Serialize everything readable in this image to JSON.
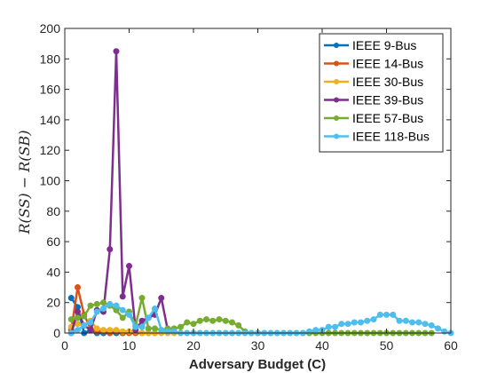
{
  "chart_data": {
    "type": "line",
    "xlabel": "Adversary Budget (C)",
    "ylabel": "R(S_S) − R(S_B)",
    "ylabel_text": "R(SS) − R(SB)",
    "xlim": [
      0,
      60
    ],
    "ylim": [
      0,
      200
    ],
    "xticks": [
      0,
      10,
      20,
      30,
      40,
      50,
      60
    ],
    "yticks": [
      0,
      20,
      40,
      60,
      80,
      100,
      120,
      140,
      160,
      180,
      200
    ],
    "grid": false,
    "legend_position": "top-right",
    "series": [
      {
        "name": "IEEE 9-Bus",
        "color": "#0072BD",
        "x": [
          1,
          2,
          3,
          4,
          5,
          6,
          7,
          8,
          9
        ],
        "y": [
          23,
          17,
          0,
          2,
          0,
          0,
          0,
          0,
          0
        ]
      },
      {
        "name": "IEEE 14-Bus",
        "color": "#D95319",
        "x": [
          1,
          2,
          3,
          4,
          5,
          6,
          7,
          8,
          9,
          10,
          11,
          12,
          13,
          14
        ],
        "y": [
          2,
          30,
          12,
          3,
          1,
          1,
          0,
          1,
          0,
          0,
          0,
          0,
          0,
          0
        ]
      },
      {
        "name": "IEEE 30-Bus",
        "color": "#EDB120",
        "x": [
          1,
          2,
          3,
          4,
          5,
          6,
          7,
          8,
          9,
          10,
          11,
          12,
          13,
          14,
          15,
          16,
          17,
          18,
          19,
          20,
          21,
          22,
          23,
          24,
          25,
          26,
          27,
          28,
          29,
          30
        ],
        "y": [
          4,
          6,
          5,
          8,
          3,
          2,
          2,
          2,
          1,
          1,
          1,
          0,
          0,
          0,
          0,
          0,
          0,
          0,
          0,
          0,
          0,
          0,
          0,
          0,
          0,
          0,
          0,
          0,
          0,
          0
        ]
      },
      {
        "name": "IEEE 39-Bus",
        "color": "#7E2F8E",
        "x": [
          1,
          2,
          3,
          4,
          5,
          6,
          7,
          8,
          9,
          10,
          11,
          12,
          13,
          14,
          15,
          16
        ],
        "y": [
          0,
          14,
          5,
          2,
          15,
          14,
          55,
          185,
          24,
          44,
          2,
          8,
          10,
          12,
          23,
          2
        ]
      },
      {
        "name": "IEEE 57-Bus",
        "color": "#77AC30",
        "x": [
          1,
          2,
          3,
          4,
          5,
          6,
          7,
          8,
          9,
          10,
          11,
          12,
          13,
          14,
          15,
          16,
          17,
          18,
          19,
          20,
          21,
          22,
          23,
          24,
          25,
          26,
          27,
          28,
          29,
          30,
          31,
          32,
          33,
          34,
          35,
          36,
          37,
          38,
          39,
          40,
          41,
          42,
          43,
          44,
          45,
          46,
          47,
          48,
          49,
          50,
          51,
          52,
          53,
          54,
          55,
          56,
          57
        ],
        "y": [
          9,
          10,
          11,
          18,
          19,
          20,
          18,
          15,
          10,
          14,
          5,
          23,
          3,
          3,
          2,
          3,
          3,
          4,
          7,
          6,
          8,
          9,
          8,
          9,
          8,
          7,
          5,
          1,
          0,
          0,
          0,
          0,
          0,
          0,
          0,
          0,
          0,
          0,
          0,
          0,
          0,
          0,
          0,
          0,
          0,
          0,
          0,
          0,
          0,
          0,
          0,
          0,
          0,
          0,
          0,
          0,
          0
        ]
      },
      {
        "name": "IEEE 118-Bus",
        "color": "#4DBEEE",
        "x": [
          1,
          2,
          3,
          4,
          5,
          6,
          7,
          8,
          9,
          10,
          11,
          12,
          13,
          14,
          15,
          16,
          17,
          18,
          19,
          20,
          21,
          22,
          23,
          24,
          25,
          26,
          27,
          28,
          29,
          30,
          31,
          32,
          33,
          34,
          35,
          36,
          37,
          38,
          39,
          40,
          41,
          42,
          43,
          44,
          45,
          46,
          47,
          48,
          49,
          50,
          51,
          52,
          53,
          54,
          55,
          56,
          57,
          58,
          59,
          60
        ],
        "y": [
          0,
          2,
          5,
          7,
          14,
          16,
          19,
          18,
          15,
          12,
          4,
          4,
          10,
          16,
          2,
          1,
          1,
          0,
          0,
          0,
          0,
          0,
          0,
          0,
          0,
          0,
          0,
          0,
          0,
          0,
          0,
          0,
          0,
          0,
          0,
          0,
          0,
          1,
          2,
          2,
          4,
          4,
          6,
          6,
          7,
          7,
          8,
          9,
          12,
          12,
          12,
          8,
          8,
          7,
          7,
          6,
          5,
          3,
          1,
          0
        ]
      }
    ]
  }
}
